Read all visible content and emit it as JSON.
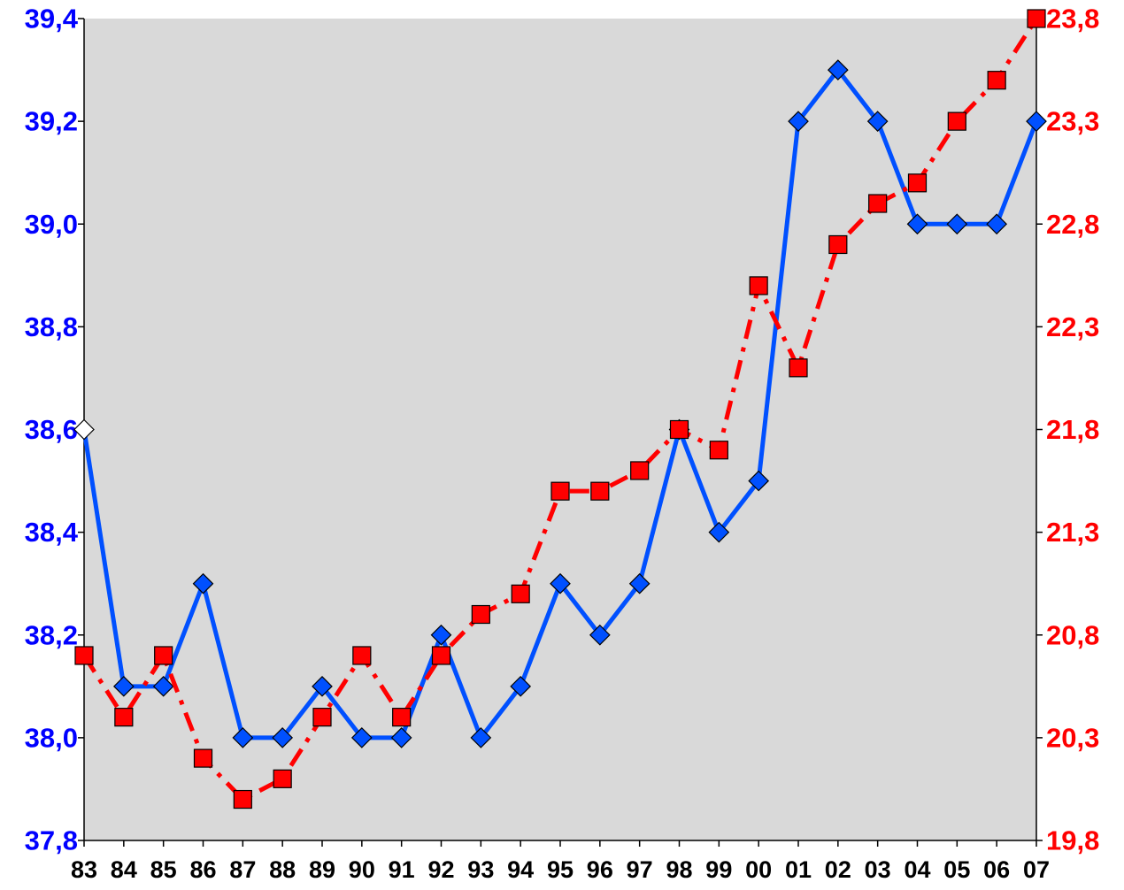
{
  "chart_data": {
    "type": "line",
    "title": "",
    "xlabel": "",
    "categories": [
      "83",
      "84",
      "85",
      "86",
      "87",
      "88",
      "89",
      "90",
      "91",
      "92",
      "93",
      "94",
      "95",
      "96",
      "97",
      "98",
      "99",
      "00",
      "01",
      "02",
      "03",
      "04",
      "05",
      "06",
      "07"
    ],
    "grid": false,
    "legend": "none",
    "y_left": {
      "ylim": [
        37.8,
        39.4
      ],
      "ticks": [
        "37,8",
        "38,0",
        "38,2",
        "38,4",
        "38,6",
        "38,8",
        "39,0",
        "39,2",
        "39,4"
      ],
      "tick_values": [
        37.8,
        38.0,
        38.2,
        38.4,
        38.6,
        38.8,
        39.0,
        39.2,
        39.4
      ],
      "color": "#0000ff"
    },
    "y_right": {
      "ylim": [
        19.8,
        23.8
      ],
      "ticks": [
        "19,8",
        "20,3",
        "20,8",
        "21,3",
        "21,8",
        "22,3",
        "22,8",
        "23,3",
        "23,8"
      ],
      "tick_values": [
        19.8,
        20.3,
        20.8,
        21.3,
        21.8,
        22.3,
        22.8,
        23.3,
        23.8
      ],
      "color": "#ff0000"
    },
    "series": [
      {
        "axis": "left",
        "color": "#0050ff",
        "marker": "diamond",
        "line_style": "solid",
        "values": [
          38.6,
          38.1,
          38.1,
          38.3,
          38.0,
          38.0,
          38.1,
          38.0,
          38.0,
          38.2,
          38.0,
          38.1,
          38.3,
          38.2,
          38.3,
          38.6,
          38.4,
          38.5,
          39.2,
          39.3,
          39.2,
          39.0,
          39.0,
          39.0,
          39.2
        ]
      },
      {
        "axis": "right",
        "color": "#ff0000",
        "marker": "square",
        "line_style": "dash-dot",
        "values": [
          20.7,
          20.4,
          20.7,
          20.2,
          20.0,
          20.1,
          20.4,
          20.7,
          20.4,
          20.7,
          20.9,
          21.0,
          21.5,
          21.5,
          21.6,
          21.8,
          21.7,
          22.5,
          22.1,
          22.7,
          22.9,
          23.0,
          23.3,
          23.5,
          23.8
        ]
      }
    ],
    "background_color": "#d9d9d9"
  }
}
